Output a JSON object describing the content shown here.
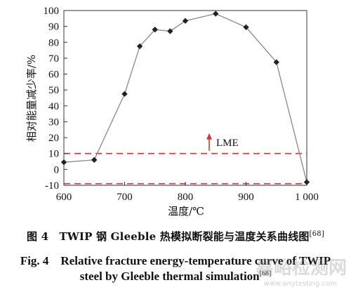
{
  "chart_data": {
    "type": "line",
    "xlabel": "温度/℃",
    "ylabel": "相对能量减少率/%",
    "xlim": [
      600,
      1000
    ],
    "ylim": [
      -10,
      100
    ],
    "x_ticks": [
      "600",
      "700",
      "800",
      "900",
      "1 000"
    ],
    "x_tick_values": [
      600,
      700,
      800,
      900,
      1000
    ],
    "y_ticks": [
      "-10",
      "0",
      "10",
      "20",
      "30",
      "40",
      "50",
      "60",
      "70",
      "80",
      "90",
      "100"
    ],
    "y_tick_values": [
      -10,
      0,
      10,
      20,
      30,
      40,
      50,
      60,
      70,
      80,
      90,
      100
    ],
    "series": [
      {
        "x": [
          600,
          650,
          700,
          725,
          750,
          775,
          800,
          850,
          900,
          950,
          1000
        ],
        "y": [
          4.5,
          6,
          47.5,
          77.5,
          88,
          87,
          93.5,
          98,
          89.5,
          67.5,
          -8
        ]
      }
    ],
    "reference_lines": [
      {
        "y": 10,
        "color": "#d6333a",
        "style": "dashed"
      },
      {
        "y": -9,
        "color": "#d6333a",
        "style": "dashed"
      }
    ],
    "annotation": {
      "text": "LME",
      "arrow": "up",
      "x": 800,
      "y": 10,
      "y_arrow_top": 22
    },
    "line_color": "#888888",
    "marker_color": "#222222"
  },
  "caption": {
    "cn": "图 4　TWIP 钢 Gleeble 热模拟断裂能与温度关系曲线图",
    "cn_ref": "[68]",
    "en_line1": "Fig. 4　Relative fracture energy-temperature curve of TWIP",
    "en_line2": "steel by Gleeble thermal simulation",
    "en_ref": "[68]"
  },
  "watermark": {
    "main": "嘉峪检测网",
    "sub": "www.anytesting.com"
  }
}
